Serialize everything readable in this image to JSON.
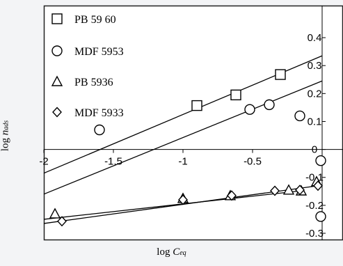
{
  "chart_data": {
    "type": "scatter",
    "xlabel": {
      "prefix": "log ",
      "var": "C",
      "sub": "eq"
    },
    "ylabel": {
      "prefix": "log ",
      "var": "n",
      "sub": "ads"
    },
    "xlim": [
      -2.0,
      0.0
    ],
    "ylim": [
      -0.3,
      0.45
    ],
    "x_ticks": [
      "-2",
      "-1.5",
      "-1",
      "-0.5",
      "0"
    ],
    "x_tick_values": [
      -2.0,
      -1.5,
      -1.0,
      -0.5,
      0.0
    ],
    "y_ticks": [
      "0.4",
      "0.3",
      "0.2",
      "0.1",
      "0",
      "-0,1",
      "-0.2",
      "-0.3"
    ],
    "y_tick_values": [
      0.4,
      0.3,
      0.2,
      0.1,
      0.0,
      -0.1,
      -0.2,
      -0.3
    ],
    "grid": false,
    "legend_position": "top-left",
    "series": [
      {
        "name": "PB 59 60",
        "marker": "square",
        "points": [
          [
            -0.9,
            0.157
          ],
          [
            -0.62,
            0.195
          ],
          [
            -0.3,
            0.268
          ]
        ],
        "fit": [
          [
            -2.0,
            -0.085
          ],
          [
            0.0,
            0.335
          ]
        ]
      },
      {
        "name": "MDF 5953",
        "marker": "circle",
        "points": [
          [
            -1.6,
            0.07
          ],
          [
            -0.52,
            0.143
          ],
          [
            -0.38,
            0.16
          ],
          [
            -0.16,
            0.12
          ],
          [
            -0.01,
            -0.04
          ],
          [
            -0.01,
            -0.24
          ]
        ],
        "fit": [
          [
            -2.0,
            -0.16
          ],
          [
            0.0,
            0.245
          ]
        ]
      },
      {
        "name": "PB 5936",
        "marker": "triangle",
        "points": [
          [
            -1.92,
            -0.23
          ],
          [
            -1.0,
            -0.175
          ],
          [
            -0.66,
            -0.165
          ],
          [
            -0.24,
            -0.145
          ],
          [
            -0.15,
            -0.148
          ],
          [
            -0.04,
            -0.115
          ]
        ],
        "fit": [
          [
            -2.0,
            -0.25
          ],
          [
            -0.15,
            -0.148
          ]
        ]
      },
      {
        "name": "MDF 5933",
        "marker": "diamond",
        "points": [
          [
            -1.87,
            -0.257
          ],
          [
            -1.0,
            -0.18
          ],
          [
            -0.65,
            -0.165
          ],
          [
            -0.34,
            -0.148
          ],
          [
            -0.16,
            -0.145
          ],
          [
            -0.03,
            -0.13
          ]
        ],
        "fit": [
          [
            -2.0,
            -0.265
          ],
          [
            -0.03,
            -0.13
          ]
        ]
      }
    ]
  }
}
